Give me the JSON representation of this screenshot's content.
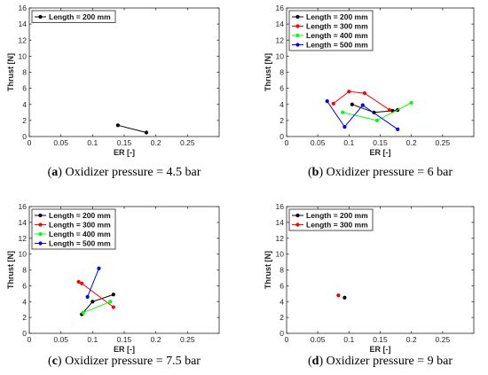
{
  "chart_data": [
    {
      "type": "line",
      "caption_letter": "a",
      "caption_text": "Oxidizer pressure = 4.5 bar",
      "xlabel": "ER [-]",
      "ylabel": "Thrust [N]",
      "xlim": [
        0,
        0.3
      ],
      "ylim": [
        0,
        16
      ],
      "xticks": [
        0,
        0.05,
        0.1,
        0.15,
        0.2,
        0.25
      ],
      "xtick_labels": [
        "0",
        "0.05",
        "0.1",
        "0.15",
        "0.2",
        "0.25"
      ],
      "yticks": [
        0,
        2,
        4,
        6,
        8,
        10,
        12,
        14,
        16
      ],
      "ytick_labels": [
        "0",
        "2",
        "4",
        "6",
        "8",
        "10",
        "12",
        "14",
        "16"
      ],
      "legend_placement": "top-left",
      "series": [
        {
          "name": "Length = 200 mm",
          "color": "#000000",
          "points": [
            [
              0.14,
              1.4
            ],
            [
              0.185,
              0.5
            ]
          ]
        }
      ]
    },
    {
      "type": "line",
      "caption_letter": "b",
      "caption_text": "Oxidizer pressure = 6 bar",
      "xlabel": "ER [-]",
      "ylabel": "Thrust [N]",
      "xlim": [
        0,
        0.3
      ],
      "ylim": [
        0,
        16
      ],
      "xticks": [
        0,
        0.05,
        0.1,
        0.15,
        0.2,
        0.25
      ],
      "xtick_labels": [
        "0",
        "0.05",
        "0.1",
        "0.15",
        "0.2",
        "0.25"
      ],
      "yticks": [
        0,
        2,
        4,
        6,
        8,
        10,
        12,
        14,
        16
      ],
      "ytick_labels": [
        "0",
        "2",
        "4",
        "6",
        "8",
        "10",
        "12",
        "14",
        "16"
      ],
      "legend_placement": "top-left",
      "series": [
        {
          "name": "Length = 200 mm",
          "color": "#000000",
          "points": [
            [
              0.105,
              4.0
            ],
            [
              0.14,
              3.0
            ],
            [
              0.17,
              3.2
            ],
            [
              0.178,
              3.3
            ]
          ]
        },
        {
          "name": "Length = 300 mm",
          "color": "#ff0000",
          "points": [
            [
              0.075,
              4.1
            ],
            [
              0.1,
              5.6
            ],
            [
              0.125,
              5.4
            ],
            [
              0.165,
              3.3
            ]
          ]
        },
        {
          "name": "Length = 400 mm",
          "color": "#00ff00",
          "points": [
            [
              0.09,
              3.0
            ],
            [
              0.145,
              2.0
            ],
            [
              0.2,
              4.2
            ]
          ]
        },
        {
          "name": "Length = 500 mm",
          "color": "#0000ff",
          "points": [
            [
              0.065,
              4.4
            ],
            [
              0.093,
              1.2
            ],
            [
              0.122,
              3.9
            ],
            [
              0.178,
              0.9
            ]
          ]
        }
      ]
    },
    {
      "type": "line",
      "caption_letter": "c",
      "caption_text": "Oxidizer pressure = 7.5 bar",
      "xlabel": "ER [-]",
      "ylabel": "Thrust [N]",
      "xlim": [
        0,
        0.3
      ],
      "ylim": [
        0,
        16
      ],
      "xticks": [
        0,
        0.05,
        0.1,
        0.15,
        0.2,
        0.25
      ],
      "xtick_labels": [
        "0",
        "0.05",
        "0.1",
        "0.15",
        "0.2",
        "0.25"
      ],
      "yticks": [
        0,
        2,
        4,
        6,
        8,
        10,
        12,
        14,
        16
      ],
      "ytick_labels": [
        "0",
        "2",
        "4",
        "6",
        "8",
        "10",
        "12",
        "14",
        "16"
      ],
      "legend_placement": "top-left",
      "series": [
        {
          "name": "Length = 200 mm",
          "color": "#000000",
          "points": [
            [
              0.083,
              2.4
            ],
            [
              0.1,
              4.0
            ],
            [
              0.133,
              4.9
            ]
          ]
        },
        {
          "name": "Length = 300 mm",
          "color": "#ff0000",
          "points": [
            [
              0.078,
              6.5
            ],
            [
              0.083,
              6.3
            ],
            [
              0.133,
              3.3
            ]
          ]
        },
        {
          "name": "Length = 400 mm",
          "color": "#00ff00",
          "points": [
            [
              0.085,
              2.6
            ],
            [
              0.128,
              4.0
            ]
          ]
        },
        {
          "name": "Length = 500 mm",
          "color": "#0000ff",
          "points": [
            [
              0.092,
              4.6
            ],
            [
              0.11,
              8.2
            ]
          ]
        }
      ]
    },
    {
      "type": "scatter",
      "caption_letter": "d",
      "caption_text": "Oxidizer pressure = 9 bar",
      "xlabel": "ER [-]",
      "ylabel": "Thrust [N]",
      "xlim": [
        0,
        0.3
      ],
      "ylim": [
        0,
        16
      ],
      "xticks": [
        0,
        0.05,
        0.1,
        0.15,
        0.2,
        0.25
      ],
      "xtick_labels": [
        "0",
        "0.05",
        "0.1",
        "0.15",
        "0.2",
        "0.25"
      ],
      "yticks": [
        0,
        2,
        4,
        6,
        8,
        10,
        12,
        14,
        16
      ],
      "ytick_labels": [
        "0",
        "2",
        "4",
        "6",
        "8",
        "10",
        "12",
        "14",
        "16"
      ],
      "legend_placement": "top-left",
      "series": [
        {
          "name": "Length = 200 mm",
          "color": "#000000",
          "points": [
            [
              0.093,
              4.5
            ]
          ]
        },
        {
          "name": "Length = 300 mm",
          "color": "#ff0000",
          "points": [
            [
              0.083,
              4.8
            ]
          ]
        }
      ]
    }
  ]
}
